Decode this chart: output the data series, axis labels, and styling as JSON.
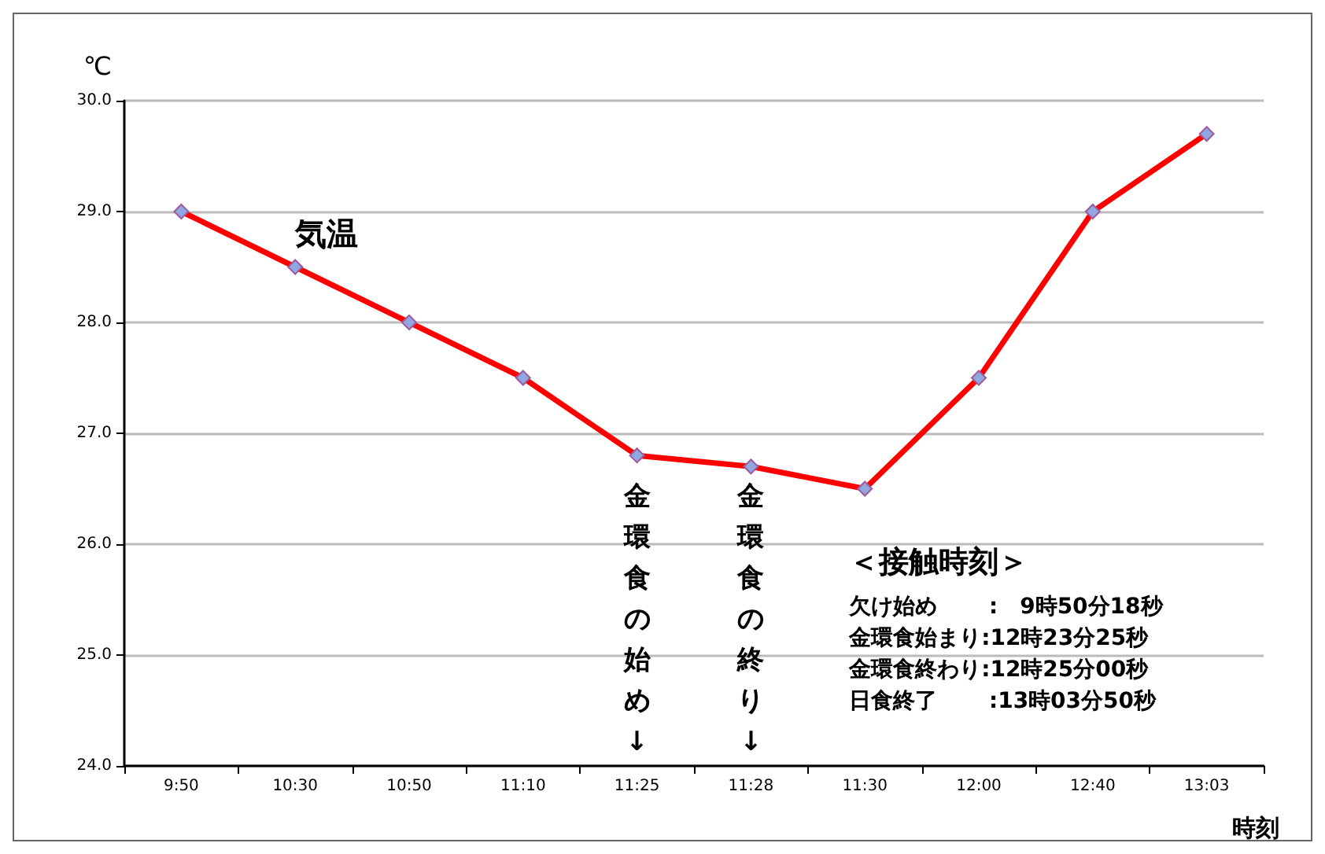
{
  "chart_data": {
    "type": "line",
    "ylabel": "℃",
    "xlabel": "時刻",
    "categories": [
      "9:50",
      "10:30",
      "10:50",
      "11:10",
      "11:25",
      "11:28",
      "11:30",
      "12:00",
      "12:40",
      "13:03"
    ],
    "series": [
      {
        "name": "気温",
        "color": "#ff0000",
        "values": [
          29.0,
          28.5,
          28.0,
          27.5,
          26.8,
          26.7,
          26.5,
          27.5,
          29.0,
          29.7
        ]
      }
    ],
    "ylim": [
      24,
      30
    ],
    "yticks": [
      {
        "value": 24,
        "label": "24.0"
      },
      {
        "value": 25,
        "label": "25.0"
      },
      {
        "value": 26,
        "label": "26.0"
      },
      {
        "value": 27,
        "label": "27.0"
      },
      {
        "value": 28,
        "label": "28.0"
      },
      {
        "value": 29,
        "label": "29.0"
      },
      {
        "value": 30,
        "label": "30.0"
      }
    ],
    "grid": "y",
    "legend": false,
    "marker": "diamond",
    "line_style": "solid",
    "annotations": [
      "金環食の始め↓",
      "金環食の終り↓",
      "＜接触時刻＞",
      "欠け始め　　 :　9時50分18秒",
      "金環食始まり:12時23分25秒",
      "金環食終わり:12時25分00秒",
      "日食終了　　 :13時03分50秒"
    ]
  }
}
